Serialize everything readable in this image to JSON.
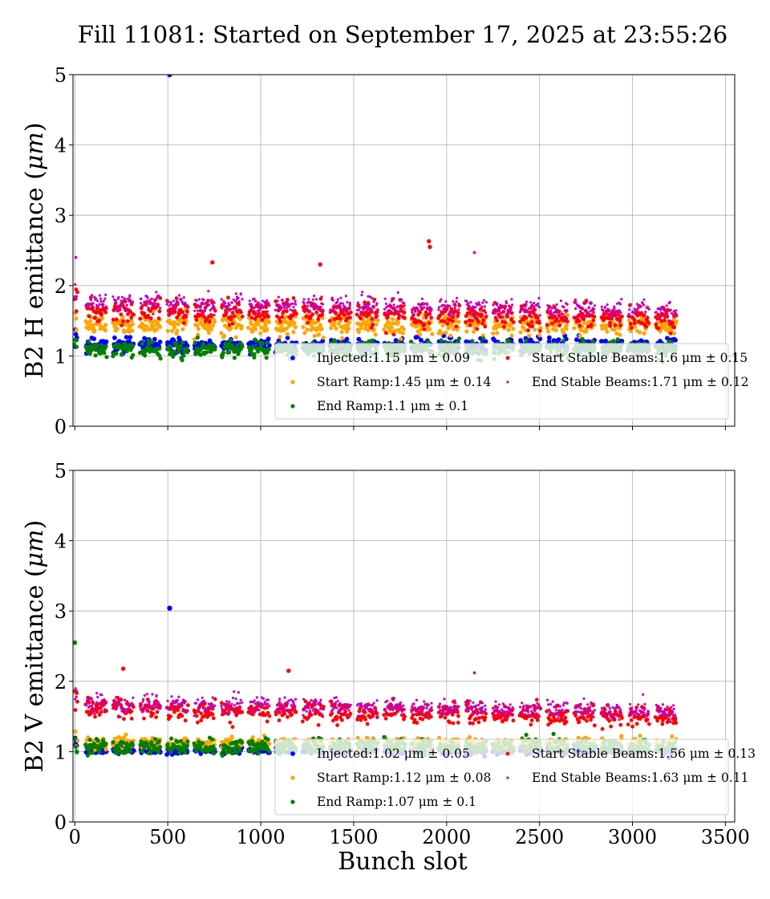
{
  "chart_data": {
    "type": "scatter",
    "title": "Fill 11081: Started on September 17, 2025 at 23:55:26",
    "xlabel": "Bunch slot",
    "xlim": [
      -10,
      3550
    ],
    "xticks": [
      0,
      500,
      1000,
      1500,
      2000,
      2500,
      3000,
      3500
    ],
    "grid": true,
    "colors": {
      "Injected": "#0000ff",
      "Start Ramp": "#ffa500",
      "End Ramp": "#008000",
      "Start Stable Beams": "#ff0000",
      "End Stable Beams": "#bf00bf"
    },
    "panels": [
      {
        "ylabel": "B2 H emittance ($\\mu m$)",
        "ylabel_text": "B2 H emittance (",
        "ylabel_unit": "μm",
        "ylim": [
          0,
          5
        ],
        "yticks": [
          0,
          1,
          2,
          3,
          4,
          5
        ],
        "legend_position": "lower right",
        "series": [
          {
            "name": "Injected",
            "label": "Injected:1.15 μm ± 0.09",
            "mean": 1.15,
            "std": 0.09,
            "x_range": [
              0,
              3240
            ]
          },
          {
            "name": "Start Ramp",
            "label": "Start Ramp:1.45 μm ± 0.14",
            "mean": 1.45,
            "std": 0.14,
            "x_range": [
              0,
              3240
            ]
          },
          {
            "name": "End Ramp",
            "label": "End Ramp:1.1 μm ± 0.1",
            "mean": 1.1,
            "std": 0.1,
            "x_range": [
              0,
              3240
            ]
          },
          {
            "name": "Start Stable Beams",
            "label": "Start Stable Beams:1.6 μm ± 0.15",
            "mean": 1.6,
            "std": 0.15,
            "x_range": [
              0,
              3240
            ]
          },
          {
            "name": "End Stable Beams",
            "label": "End Stable Beams:1.71 μm ± 0.12",
            "mean": 1.71,
            "std": 0.12,
            "x_range": [
              0,
              3240
            ]
          }
        ],
        "outliers": [
          {
            "series": "Injected",
            "x": 510,
            "y": 5.0
          },
          {
            "series": "Start Stable Beams",
            "x": 1905,
            "y": 2.63
          },
          {
            "series": "Start Stable Beams",
            "x": 1910,
            "y": 2.55
          },
          {
            "series": "Start Stable Beams",
            "x": 740,
            "y": 2.33
          },
          {
            "series": "Start Stable Beams",
            "x": 1320,
            "y": 2.3
          },
          {
            "series": "End Stable Beams",
            "x": 2150,
            "y": 2.47
          },
          {
            "series": "End Stable Beams",
            "x": 5,
            "y": 2.4
          }
        ]
      },
      {
        "ylabel": "B2 V emittance ($\\mu m$)",
        "ylabel_text": "B2 V emittance (",
        "ylabel_unit": "μm",
        "ylim": [
          0,
          5
        ],
        "yticks": [
          0,
          1,
          2,
          3,
          4,
          5
        ],
        "legend_position": "lower right",
        "series": [
          {
            "name": "Injected",
            "label": "Injected:1.02 μm ± 0.05",
            "mean": 1.02,
            "std": 0.05,
            "x_range": [
              0,
              3240
            ]
          },
          {
            "name": "Start Ramp",
            "label": "Start Ramp:1.12 μm ± 0.08",
            "mean": 1.12,
            "std": 0.08,
            "x_range": [
              0,
              3240
            ]
          },
          {
            "name": "End Ramp",
            "label": "End Ramp:1.07 μm ± 0.1",
            "mean": 1.07,
            "std": 0.1,
            "x_range": [
              0,
              3240
            ]
          },
          {
            "name": "Start Stable Beams",
            "label": "Start Stable Beams:1.56 μm ± 0.13",
            "mean": 1.56,
            "std": 0.13,
            "x_range": [
              0,
              3240
            ]
          },
          {
            "name": "End Stable Beams",
            "label": "End Stable Beams:1.63 μm ± 0.11",
            "mean": 1.63,
            "std": 0.11,
            "x_range": [
              0,
              3240
            ]
          }
        ],
        "outliers": [
          {
            "series": "Injected",
            "x": 510,
            "y": 3.04
          },
          {
            "series": "End Ramp",
            "x": 0,
            "y": 2.55
          },
          {
            "series": "Start Stable Beams",
            "x": 260,
            "y": 2.18
          },
          {
            "series": "Start Stable Beams",
            "x": 1150,
            "y": 2.15
          },
          {
            "series": "End Stable Beams",
            "x": 2150,
            "y": 2.12
          }
        ]
      }
    ]
  }
}
